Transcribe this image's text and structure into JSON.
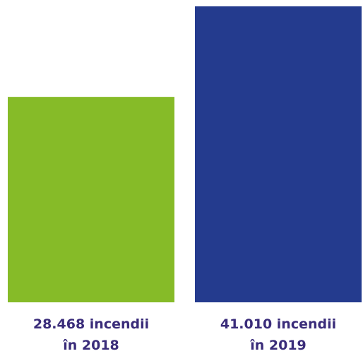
{
  "chart_data": {
    "type": "bar",
    "categories": [
      "în 2018",
      "în 2019"
    ],
    "values": [
      28468,
      41010
    ],
    "value_labels": [
      "28.468 incendii",
      "41.010 incendii"
    ],
    "colors": [
      "#86bb28",
      "#243b8e"
    ],
    "label_color": "#3a2c7a",
    "title": "",
    "xlabel": "",
    "ylabel": "",
    "ylim": [
      0,
      41010
    ],
    "grid": false,
    "axes_visible": false
  }
}
